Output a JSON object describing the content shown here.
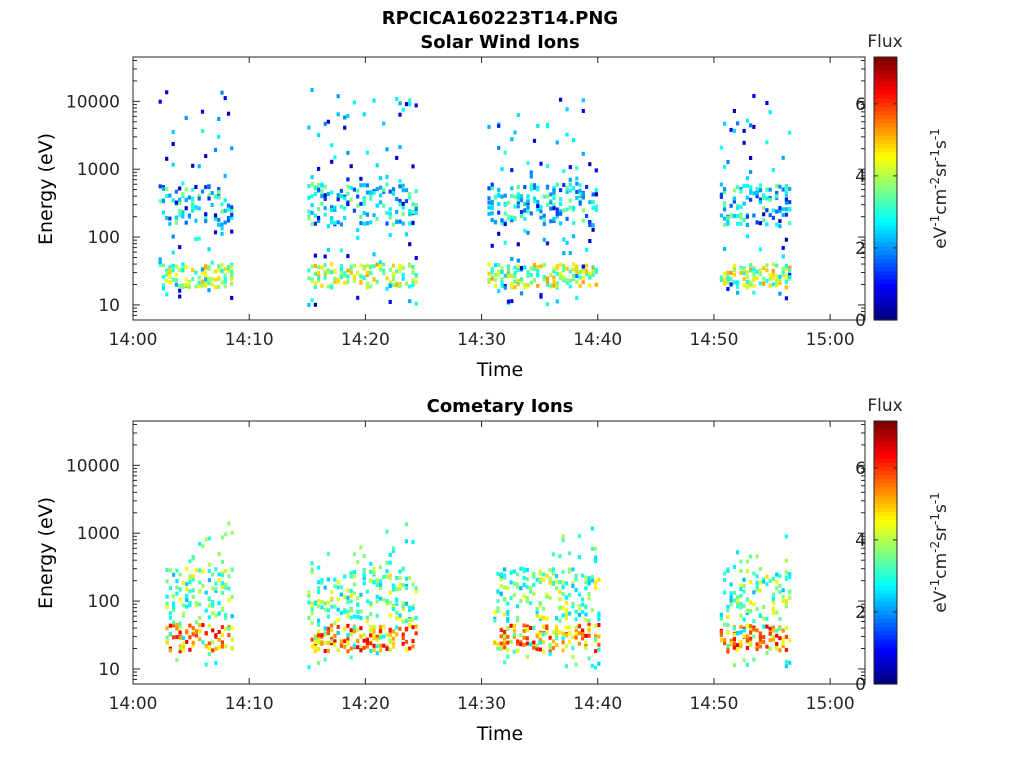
{
  "figure_title": "RPCICA160223T14.PNG",
  "chart_data": [
    {
      "type": "heatmap",
      "title": "Solar Wind Ions",
      "xlabel": "Time",
      "ylabel": "Energy (eV)",
      "x_tick_labels": [
        "14:00",
        "14:10",
        "14:20",
        "14:30",
        "14:40",
        "14:50",
        "15:00"
      ],
      "xlim_minutes": [
        0,
        63
      ],
      "y_scale": "log",
      "ylim": [
        6,
        45000
      ],
      "y_tick_values": [
        10,
        100,
        1000,
        10000
      ],
      "y_tick_labels": [
        "10",
        "100",
        "1000",
        "10000"
      ],
      "colorbar": {
        "label": "Flux",
        "unit_label": "eV-1cm-2sr-1s-1",
        "range": [
          0,
          7.3
        ],
        "tick_values": [
          0,
          2,
          4,
          6
        ],
        "tick_labels": [
          "0",
          "2",
          "4",
          "6"
        ],
        "colormap": "jet"
      },
      "bursts_minutes": [
        {
          "start": 2.2,
          "end": 8.5
        },
        {
          "start": 15.0,
          "end": 24.5
        },
        {
          "start": 30.5,
          "end": 40.0
        },
        {
          "start": 50.5,
          "end": 56.5
        }
      ],
      "dominant_flux_band_eV": [
        [
          150,
          600
        ],
        [
          18,
          40
        ]
      ],
      "typical_flux": [
        2.5,
        4
      ]
    },
    {
      "type": "heatmap",
      "title": "Cometary Ions",
      "xlabel": "Time",
      "ylabel": "Energy (eV)",
      "x_tick_labels": [
        "14:00",
        "14:10",
        "14:20",
        "14:30",
        "14:40",
        "14:50",
        "15:00"
      ],
      "xlim_minutes": [
        0,
        63
      ],
      "y_scale": "log",
      "ylim": [
        6,
        45000
      ],
      "y_tick_values": [
        10,
        100,
        1000,
        10000
      ],
      "y_tick_labels": [
        "10",
        "100",
        "1000",
        "10000"
      ],
      "colorbar": {
        "label": "Flux",
        "unit_label": "eV-1cm-2sr-1s-1",
        "range": [
          0,
          7.3
        ],
        "tick_values": [
          0,
          2,
          4,
          6
        ],
        "tick_labels": [
          "0",
          "2",
          "4",
          "6"
        ],
        "colormap": "jet"
      },
      "bursts_minutes": [
        {
          "start": 2.8,
          "end": 8.5
        },
        {
          "start": 15.0,
          "end": 24.5
        },
        {
          "start": 31.0,
          "end": 40.0
        },
        {
          "start": 50.5,
          "end": 56.5
        }
      ],
      "dominant_flux_band_eV": [
        [
          18,
          45
        ],
        [
          50,
          300
        ]
      ],
      "typical_flux": [
        5.3,
        3.5
      ]
    }
  ]
}
